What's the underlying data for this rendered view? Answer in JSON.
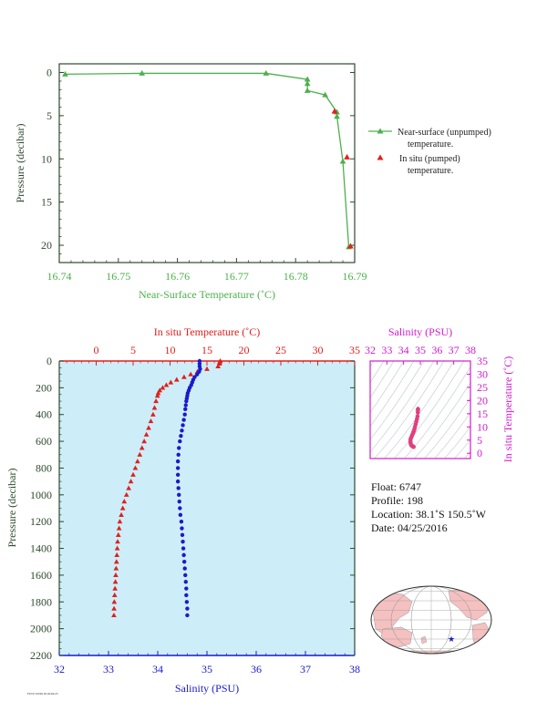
{
  "colors": {
    "green": "#4db04d",
    "red": "#e0201d",
    "blue": "#1a1acc",
    "magenta": "#d01ccc",
    "dark": "#2e4a2e",
    "plot_bg": "#cdeef8",
    "map_land": "#f5c0c0"
  },
  "chart_data": [
    {
      "type": "line",
      "xlabel": "Near-Surface Temperature (˚C)",
      "ylabel": "Pressure (decibar)",
      "xlim": [
        16.74,
        16.79
      ],
      "ylim": [
        22,
        -1
      ],
      "x_ticks": [
        "16.74",
        "16.75",
        "16.76",
        "16.77",
        "16.78",
        "16.79"
      ],
      "y_ticks": [
        "0",
        "5",
        "10",
        "15",
        "20"
      ],
      "legend": [
        "Near-surface (unpumped)",
        "temperature.",
        "In situ (pumped)",
        "temperature."
      ],
      "series": [
        {
          "name": "Near-surface (unpumped) temperature.",
          "marker": "triangle",
          "points": [
            {
              "x": 16.741,
              "y": 0.2
            },
            {
              "x": 16.754,
              "y": 0.1
            },
            {
              "x": 16.775,
              "y": 0.1
            },
            {
              "x": 16.782,
              "y": 0.8
            },
            {
              "x": 16.782,
              "y": 1.3
            },
            {
              "x": 16.782,
              "y": 2.1
            },
            {
              "x": 16.785,
              "y": 2.6
            },
            {
              "x": 16.787,
              "y": 4.6
            },
            {
              "x": 16.787,
              "y": 5.1
            },
            {
              "x": 16.788,
              "y": 10.3
            },
            {
              "x": 16.789,
              "y": 20.2
            }
          ]
        },
        {
          "name": "In situ (pumped) temperature.",
          "marker": "triangle",
          "points": [
            {
              "x": 16.7866,
              "y": 4.5
            },
            {
              "x": 16.7887,
              "y": 9.8
            },
            {
              "x": 16.7893,
              "y": 20.1
            }
          ]
        }
      ]
    },
    {
      "type": "scatter",
      "top_xlabel": "In situ Temperature (˚C)",
      "bottom_xlabel": "Salinity (PSU)",
      "ylabel": "Pressure (decibar)",
      "temp_xlim": [
        -5,
        35
      ],
      "salinity_xlim": [
        32,
        38
      ],
      "ylim": [
        2200,
        0
      ],
      "temp_ticks": [
        "0",
        "5",
        "10",
        "15",
        "20",
        "25",
        "30",
        "35"
      ],
      "salinity_ticks": [
        "32",
        "33",
        "34",
        "35",
        "36",
        "37",
        "38"
      ],
      "pressure_ticks": [
        "0",
        "200",
        "400",
        "600",
        "800",
        "1000",
        "1200",
        "1400",
        "1600",
        "1800",
        "2000",
        "2200"
      ],
      "series": [
        {
          "name": "In situ Temperature",
          "marker": "triangle",
          "points": [
            {
              "p": 0,
              "v": 16.8
            },
            {
              "p": 10,
              "v": 16.7
            },
            {
              "p": 20,
              "v": 16.7
            },
            {
              "p": 40,
              "v": 16.5
            },
            {
              "p": 60,
              "v": 15.0
            },
            {
              "p": 80,
              "v": 13.7
            },
            {
              "p": 100,
              "v": 12.8
            },
            {
              "p": 120,
              "v": 11.9
            },
            {
              "p": 140,
              "v": 10.9
            },
            {
              "p": 160,
              "v": 10.1
            },
            {
              "p": 180,
              "v": 9.5
            },
            {
              "p": 200,
              "v": 9.0
            },
            {
              "p": 220,
              "v": 8.6
            },
            {
              "p": 240,
              "v": 8.4
            },
            {
              "p": 260,
              "v": 8.3
            },
            {
              "p": 300,
              "v": 8.1
            },
            {
              "p": 350,
              "v": 7.9
            },
            {
              "p": 400,
              "v": 7.7
            },
            {
              "p": 450,
              "v": 7.4
            },
            {
              "p": 500,
              "v": 7.1
            },
            {
              "p": 550,
              "v": 6.8
            },
            {
              "p": 600,
              "v": 6.5
            },
            {
              "p": 650,
              "v": 6.2
            },
            {
              "p": 700,
              "v": 5.9
            },
            {
              "p": 750,
              "v": 5.6
            },
            {
              "p": 800,
              "v": 5.3
            },
            {
              "p": 850,
              "v": 5.0
            },
            {
              "p": 900,
              "v": 4.7
            },
            {
              "p": 950,
              "v": 4.4
            },
            {
              "p": 1000,
              "v": 4.1
            },
            {
              "p": 1050,
              "v": 3.8
            },
            {
              "p": 1100,
              "v": 3.6
            },
            {
              "p": 1150,
              "v": 3.4
            },
            {
              "p": 1200,
              "v": 3.2
            },
            {
              "p": 1250,
              "v": 3.1
            },
            {
              "p": 1300,
              "v": 3.0
            },
            {
              "p": 1350,
              "v": 2.9
            },
            {
              "p": 1400,
              "v": 2.85
            },
            {
              "p": 1450,
              "v": 2.8
            },
            {
              "p": 1500,
              "v": 2.75
            },
            {
              "p": 1550,
              "v": 2.7
            },
            {
              "p": 1600,
              "v": 2.65
            },
            {
              "p": 1650,
              "v": 2.6
            },
            {
              "p": 1700,
              "v": 2.55
            },
            {
              "p": 1750,
              "v": 2.5
            },
            {
              "p": 1800,
              "v": 2.45
            },
            {
              "p": 1850,
              "v": 2.42
            },
            {
              "p": 1900,
              "v": 2.4
            }
          ]
        },
        {
          "name": "Salinity",
          "marker": "circle",
          "points": [
            {
              "p": 0,
              "v": 34.85
            },
            {
              "p": 20,
              "v": 34.85
            },
            {
              "p": 40,
              "v": 34.85
            },
            {
              "p": 60,
              "v": 34.86
            },
            {
              "p": 80,
              "v": 34.84
            },
            {
              "p": 100,
              "v": 34.8
            },
            {
              "p": 120,
              "v": 34.75
            },
            {
              "p": 140,
              "v": 34.72
            },
            {
              "p": 160,
              "v": 34.7
            },
            {
              "p": 180,
              "v": 34.68
            },
            {
              "p": 200,
              "v": 34.65
            },
            {
              "p": 220,
              "v": 34.63
            },
            {
              "p": 240,
              "v": 34.61
            },
            {
              "p": 260,
              "v": 34.6
            },
            {
              "p": 280,
              "v": 34.59
            },
            {
              "p": 300,
              "v": 34.58
            },
            {
              "p": 330,
              "v": 34.57
            },
            {
              "p": 360,
              "v": 34.56
            },
            {
              "p": 400,
              "v": 34.55
            },
            {
              "p": 440,
              "v": 34.53
            },
            {
              "p": 480,
              "v": 34.51
            },
            {
              "p": 520,
              "v": 34.49
            },
            {
              "p": 560,
              "v": 34.47
            },
            {
              "p": 600,
              "v": 34.45
            },
            {
              "p": 650,
              "v": 34.43
            },
            {
              "p": 700,
              "v": 34.42
            },
            {
              "p": 750,
              "v": 34.41
            },
            {
              "p": 800,
              "v": 34.41
            },
            {
              "p": 850,
              "v": 34.41
            },
            {
              "p": 900,
              "v": 34.41
            },
            {
              "p": 950,
              "v": 34.42
            },
            {
              "p": 1000,
              "v": 34.43
            },
            {
              "p": 1050,
              "v": 34.44
            },
            {
              "p": 1100,
              "v": 34.45
            },
            {
              "p": 1150,
              "v": 34.46
            },
            {
              "p": 1200,
              "v": 34.48
            },
            {
              "p": 1250,
              "v": 34.49
            },
            {
              "p": 1300,
              "v": 34.5
            },
            {
              "p": 1350,
              "v": 34.51
            },
            {
              "p": 1400,
              "v": 34.52
            },
            {
              "p": 1450,
              "v": 34.53
            },
            {
              "p": 1500,
              "v": 34.54
            },
            {
              "p": 1550,
              "v": 34.55
            },
            {
              "p": 1600,
              "v": 34.56
            },
            {
              "p": 1650,
              "v": 34.57
            },
            {
              "p": 1700,
              "v": 34.58
            },
            {
              "p": 1750,
              "v": 34.58
            },
            {
              "p": 1800,
              "v": 34.59
            },
            {
              "p": 1850,
              "v": 34.6
            },
            {
              "p": 1900,
              "v": 34.6
            }
          ]
        }
      ]
    },
    {
      "type": "scatter",
      "xlabel": "Salinity (PSU)",
      "ylabel": "In situ Temperature (˚C)",
      "xlim": [
        32,
        38
      ],
      "ylim": [
        -2,
        35
      ],
      "x_ticks": [
        "32",
        "33",
        "34",
        "35",
        "36",
        "37",
        "38"
      ],
      "y_ticks": [
        "0",
        "5",
        "10",
        "15",
        "20",
        "25",
        "30",
        "35"
      ],
      "points": [
        {
          "s": 34.86,
          "t": 16.8
        },
        {
          "s": 34.85,
          "t": 15.5
        },
        {
          "s": 34.83,
          "t": 14.0
        },
        {
          "s": 34.8,
          "t": 13.0
        },
        {
          "s": 34.76,
          "t": 12.0
        },
        {
          "s": 34.72,
          "t": 11.0
        },
        {
          "s": 34.68,
          "t": 10.0
        },
        {
          "s": 34.65,
          "t": 9.2
        },
        {
          "s": 34.62,
          "t": 8.6
        },
        {
          "s": 34.58,
          "t": 8.0
        },
        {
          "s": 34.55,
          "t": 7.4
        },
        {
          "s": 34.51,
          "t": 6.8
        },
        {
          "s": 34.47,
          "t": 6.2
        },
        {
          "s": 34.43,
          "t": 5.6
        },
        {
          "s": 34.41,
          "t": 5.0
        },
        {
          "s": 34.41,
          "t": 4.4
        },
        {
          "s": 34.42,
          "t": 3.8
        },
        {
          "s": 34.44,
          "t": 3.3
        },
        {
          "s": 34.47,
          "t": 3.0
        },
        {
          "s": 34.5,
          "t": 2.8
        },
        {
          "s": 34.53,
          "t": 2.7
        },
        {
          "s": 34.56,
          "t": 2.6
        },
        {
          "s": 34.58,
          "t": 2.5
        },
        {
          "s": 34.6,
          "t": 2.4
        }
      ]
    }
  ],
  "info": {
    "float": "Float:  6747",
    "profile": "Profile:  198",
    "location": "Location:  38.1˚S  150.5˚W",
    "date": "Date:  04/25/2016"
  },
  "map": {
    "marker": "★"
  },
  "footer": {
    "text": "F6747/0198 2016/04/25"
  }
}
